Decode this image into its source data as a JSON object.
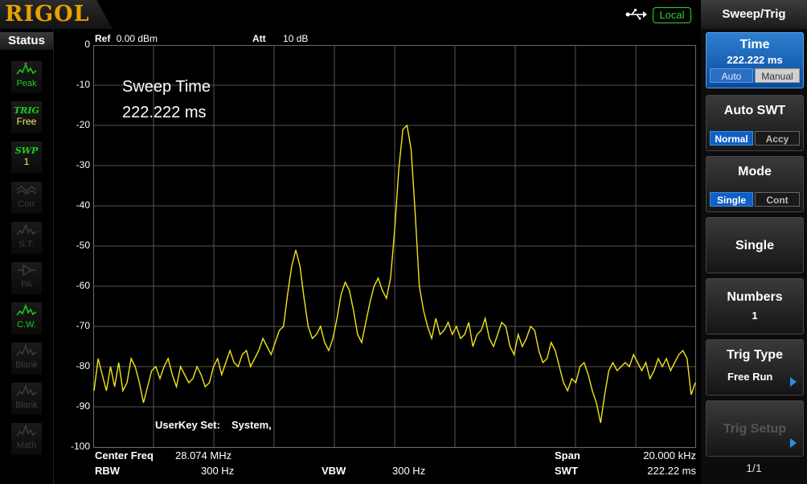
{
  "header": {
    "logo": "RIGOL",
    "local_label": "Local",
    "icons": {
      "usb": "usb-icon"
    }
  },
  "status": {
    "title": "Status",
    "items": [
      {
        "name": "peak",
        "icon": "peak-icon",
        "label": "Peak",
        "active": true
      },
      {
        "name": "trig",
        "big": "TRIG",
        "label": "Free",
        "active": true
      },
      {
        "name": "swp",
        "big": "SWP",
        "label": "1",
        "active": true
      },
      {
        "name": "corr",
        "icon": "corr-icon",
        "label": "Corr",
        "active": false
      },
      {
        "name": "st",
        "icon": "st-icon",
        "label": "S.T.",
        "active": false
      },
      {
        "name": "pa",
        "icon": "pa-icon",
        "label": "PA",
        "active": false
      },
      {
        "name": "cw",
        "icon": "cw-icon",
        "label": "C.W.",
        "active": true
      },
      {
        "name": "blank1",
        "icon": "blank-icon",
        "label": "Blank",
        "active": false
      },
      {
        "name": "blank2",
        "icon": "blank-icon",
        "label": "Blank",
        "active": false
      },
      {
        "name": "math",
        "icon": "math-icon",
        "label": "Math",
        "active": false
      }
    ]
  },
  "display": {
    "ref_label": "Ref",
    "ref_value": "0.00 dBm",
    "att_label": "Att",
    "att_value": "10 dB",
    "y_labels": [
      "0",
      "-10",
      "-20",
      "-30",
      "-40",
      "-50",
      "-60",
      "-70",
      "-80",
      "-90",
      "-100"
    ],
    "sweep_title": "Sweep Time",
    "sweep_value": "222.222 ms",
    "userkey_label": "UserKey Set:",
    "userkey_value": "System,",
    "trace_color": "#f2e51b",
    "trace_db": [
      -86,
      -78,
      -82,
      -86,
      -80,
      -85,
      -79,
      -86,
      -84,
      -78,
      -80,
      -84,
      -89,
      -85,
      -81,
      -80,
      -83,
      -80,
      -78,
      -82,
      -85,
      -80,
      -82,
      -84,
      -83,
      -80,
      -82,
      -85,
      -84,
      -80,
      -78,
      -82,
      -79,
      -76,
      -79,
      -80,
      -77,
      -76,
      -80,
      -78,
      -76,
      -73,
      -75,
      -77,
      -74,
      -71,
      -70,
      -62,
      -55,
      -51,
      -55,
      -63,
      -70,
      -73,
      -72,
      -70,
      -74,
      -76,
      -73,
      -68,
      -62,
      -59,
      -61,
      -66,
      -72,
      -74,
      -69,
      -64,
      -60,
      -58,
      -61,
      -63,
      -58,
      -46,
      -31,
      -21,
      -20,
      -26,
      -42,
      -60,
      -66,
      -70,
      -73,
      -68,
      -72,
      -71,
      -69,
      -72,
      -70,
      -73,
      -72,
      -69,
      -75,
      -72,
      -71,
      -68,
      -73,
      -75,
      -72,
      -69,
      -70,
      -75,
      -77,
      -72,
      -75,
      -73,
      -70,
      -71,
      -76,
      -79,
      -78,
      -74,
      -76,
      -80,
      -84,
      -86,
      -83,
      -84,
      -80,
      -79,
      -82,
      -86,
      -89,
      -94,
      -87,
      -81,
      -79,
      -81,
      -80,
      -79,
      -80,
      -77,
      -79,
      -81,
      -79,
      -83,
      -81,
      -78,
      -80,
      -78,
      -81,
      -79,
      -77,
      -76,
      -78,
      -87,
      -84
    ]
  },
  "bottom": {
    "center_freq_label": "Center Freq",
    "center_freq_value": "28.074 MHz",
    "span_label": "Span",
    "span_value": "20.000 kHz",
    "rbw_label": "RBW",
    "rbw_value": "300 Hz",
    "vbw_label": "VBW",
    "vbw_value": "300 Hz",
    "swt_label": "SWT",
    "swt_value": "222.22 ms"
  },
  "menu": {
    "title": "Sweep/Trig",
    "time": {
      "label": "Time",
      "value": "222.222 ms",
      "opt_a": "Auto",
      "opt_b": "Manual",
      "selected": "opt_b"
    },
    "auto_swt": {
      "label": "Auto SWT",
      "opt_a": "Normal",
      "opt_b": "Accy",
      "selected": "opt_a"
    },
    "mode": {
      "label": "Mode",
      "opt_a": "Single",
      "opt_b": "Cont",
      "selected": "opt_a"
    },
    "single": {
      "label": "Single"
    },
    "numbers": {
      "label": "Numbers",
      "value": "1"
    },
    "trig_type": {
      "label": "Trig Type",
      "value": "Free Run"
    },
    "trig_setup": {
      "label": "Trig Setup"
    },
    "page": "1/1"
  }
}
